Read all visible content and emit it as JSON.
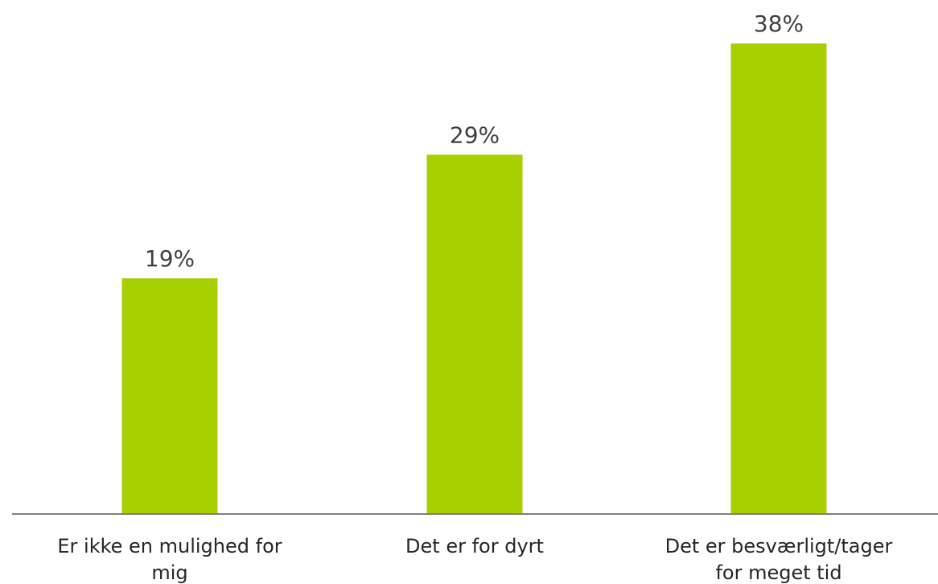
{
  "chart_data": {
    "type": "bar",
    "categories": [
      [
        "Er ikke en mulighed for",
        "mig"
      ],
      [
        "Det er for dyrt"
      ],
      [
        "Det er besværligt/tager",
        "for meget tid"
      ]
    ],
    "values": [
      19,
      29,
      38
    ],
    "value_labels": [
      "19%",
      "29%",
      "38%"
    ],
    "unit": "%",
    "title": "",
    "xlabel": "",
    "ylabel": "",
    "ylim": [
      0,
      38
    ],
    "grid": false,
    "legend": "none",
    "colors": {
      "bar": "#a8d000",
      "axis": "#7f7f7f",
      "value_text": "#404040",
      "category_text": "#262626"
    }
  }
}
